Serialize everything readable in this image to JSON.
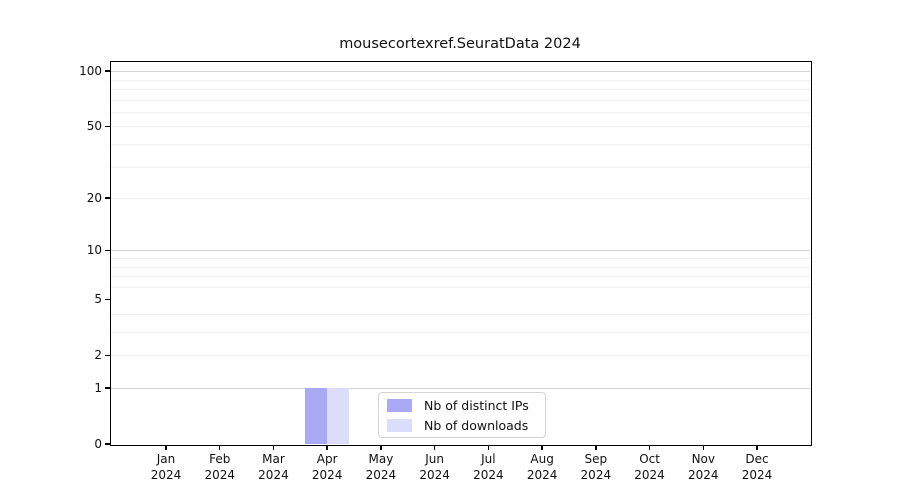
{
  "chart_data": {
    "type": "bar",
    "title": "mousecortexref.SeuratData 2024",
    "categories": [
      "Jan 2024",
      "Feb 2024",
      "Mar 2024",
      "Apr 2024",
      "May 2024",
      "Jun 2024",
      "Jul 2024",
      "Aug 2024",
      "Sep 2024",
      "Oct 2024",
      "Nov 2024",
      "Dec 2024"
    ],
    "series": [
      {
        "name": "Nb of distinct IPs",
        "color": "#a9a9f6",
        "values": [
          0,
          0,
          0,
          1,
          0,
          0,
          0,
          0,
          0,
          0,
          0,
          0
        ]
      },
      {
        "name": "Nb of downloads",
        "color": "#dcdcfb",
        "values": [
          0,
          0,
          0,
          1,
          0,
          0,
          0,
          0,
          0,
          0,
          0,
          0
        ]
      }
    ],
    "xlabel": "",
    "ylabel": "",
    "y_axis": {
      "scale": "log1p",
      "ticks": [
        0,
        1,
        2,
        5,
        10,
        20,
        50,
        100
      ],
      "major_gridlines": [
        1,
        10,
        100
      ],
      "minor_gridlines": [
        2,
        3,
        4,
        6,
        7,
        8,
        9,
        20,
        30,
        40,
        50,
        60,
        70,
        80,
        90
      ],
      "ylim": [
        0,
        112
      ]
    },
    "grid": true,
    "legend_position": "bottom-center"
  },
  "colors": {
    "axis": "#000000",
    "grid_major": "#d2d2d2",
    "grid_minor": "#f0f0f0",
    "background": "#ffffff",
    "text": "#111111"
  }
}
